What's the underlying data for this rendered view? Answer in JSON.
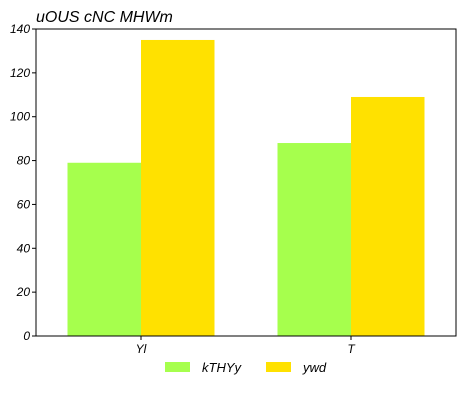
{
  "chart_data": {
    "type": "bar",
    "title": "uOUS cNC MHWm",
    "xlabel": "",
    "ylabel": "",
    "categories": [
      "Yl",
      "T"
    ],
    "series": [
      {
        "name": "kTHYy",
        "color": "#a6ff4d",
        "values": [
          79,
          88
        ]
      },
      {
        "name": "ywd",
        "color": "#ffe100",
        "values": [
          135,
          109
        ]
      }
    ],
    "ylim": [
      0,
      140
    ],
    "yticks": [
      0,
      20,
      40,
      60,
      80,
      100,
      120,
      140
    ],
    "grid": false,
    "legend": "bottom-center"
  }
}
